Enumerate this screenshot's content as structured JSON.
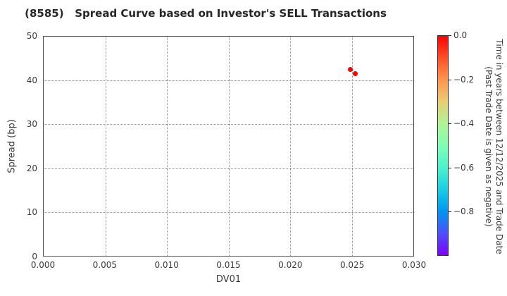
{
  "chart_data": {
    "type": "scatter",
    "title": "(8585)   Spread Curve based on Investor's SELL Transactions",
    "xlabel": "DV01",
    "ylabel": "Spread (bp)",
    "xlim": [
      0.0,
      0.03
    ],
    "ylim": [
      0,
      50
    ],
    "grid": true,
    "grid_style": "dotted",
    "x_ticks": [
      {
        "v": 0.0,
        "label": "0.000"
      },
      {
        "v": 0.005,
        "label": "0.005"
      },
      {
        "v": 0.01,
        "label": "0.010"
      },
      {
        "v": 0.015,
        "label": "0.015"
      },
      {
        "v": 0.02,
        "label": "0.020"
      },
      {
        "v": 0.025,
        "label": "0.025"
      },
      {
        "v": 0.03,
        "label": "0.030"
      }
    ],
    "y_ticks": [
      {
        "v": 0,
        "label": "0"
      },
      {
        "v": 10,
        "label": "10"
      },
      {
        "v": 20,
        "label": "20"
      },
      {
        "v": 30,
        "label": "30"
      },
      {
        "v": 40,
        "label": "40"
      },
      {
        "v": 50,
        "label": "50"
      }
    ],
    "points": [
      {
        "x": 0.0249,
        "y": 42.5,
        "time_years": 0.0,
        "color": "#ff0000"
      },
      {
        "x": 0.0253,
        "y": 41.5,
        "time_years": 0.0,
        "color": "#ff0000"
      }
    ],
    "colorbar": {
      "title_line1": "Time in years between 12/12/2025 and Trade Date",
      "title_line2": "(Past Trade Date is given as negative)",
      "range_top": 0.0,
      "range_bottom": -1.0,
      "colormap": "rainbow (0.0 = red, −1.0 = violet)",
      "ticks": [
        {
          "v": 0.0,
          "label": "0.0"
        },
        {
          "v": -0.2,
          "label": "−0.2"
        },
        {
          "v": -0.4,
          "label": "−0.4"
        },
        {
          "v": -0.6,
          "label": "−0.6"
        },
        {
          "v": -0.8,
          "label": "−0.8"
        }
      ],
      "gradient_stops": [
        "#ff0000",
        "#ff4f28",
        "#ff964f",
        "#e5ce74",
        "#b2f296",
        "#80ffb4",
        "#4df2ce",
        "#1acee3",
        "#0096f2",
        "#4d4ffc",
        "#8000ff"
      ]
    }
  }
}
